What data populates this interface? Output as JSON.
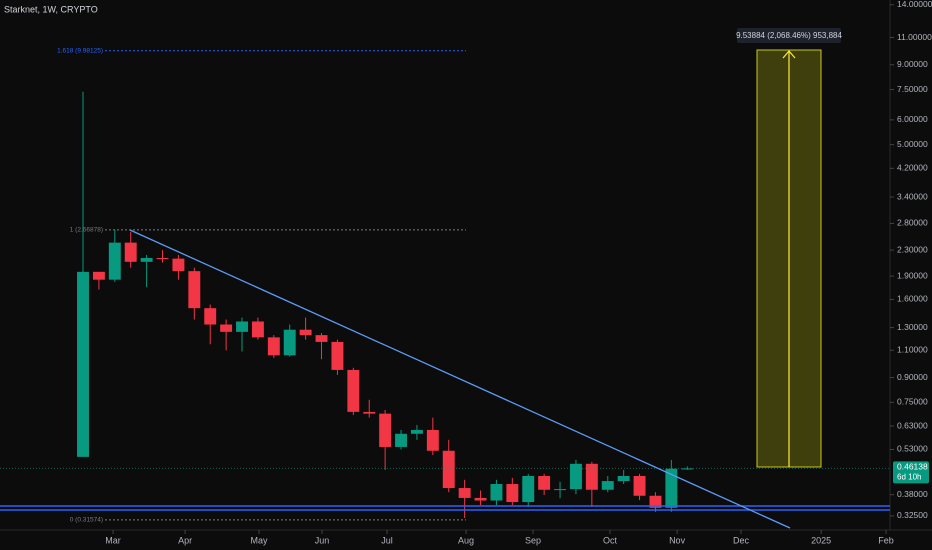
{
  "chart_data": {
    "type": "candlestick",
    "title": "Starknet, 1W, CRYPTO",
    "log_scale": true,
    "x": [
      0,
      1,
      2,
      3,
      4,
      5,
      6,
      7,
      8,
      9,
      10,
      11,
      12,
      13,
      14,
      15,
      16,
      17,
      18,
      19,
      20,
      21,
      22,
      23,
      24,
      25,
      26,
      27,
      28,
      29,
      30,
      31,
      32,
      33,
      34,
      35,
      36,
      37,
      38
    ],
    "open": [
      0.502,
      1.96,
      1.85,
      2.43,
      2.11,
      2.17,
      2.16,
      1.97,
      1.5,
      1.33,
      1.26,
      1.36,
      1.21,
      1.06,
      1.28,
      1.23,
      1.17,
      0.952,
      0.699,
      0.69,
      0.54,
      0.595,
      0.612,
      0.525,
      0.399,
      0.371,
      0.364,
      0.411,
      0.36,
      0.436,
      0.394,
      0.396,
      0.477,
      0.394,
      0.42,
      0.436,
      0.377,
      0.345,
      0.46
    ],
    "high": [
      7.38,
      1.96,
      2.68,
      2.63,
      2.22,
      2.3,
      2.22,
      2.02,
      1.54,
      1.38,
      1.4,
      1.4,
      1.23,
      1.33,
      1.4,
      1.25,
      1.19,
      0.967,
      0.764,
      0.709,
      0.612,
      0.635,
      0.67,
      0.569,
      0.424,
      0.392,
      0.424,
      0.43,
      0.443,
      0.443,
      0.418,
      0.491,
      0.484,
      0.436,
      0.456,
      0.443,
      0.387,
      0.491,
      0.468
    ],
    "low": [
      0.502,
      1.72,
      1.82,
      2.02,
      1.75,
      2.1,
      1.85,
      1.38,
      1.15,
      1.1,
      1.09,
      1.19,
      1.04,
      1.05,
      1.19,
      1.03,
      0.918,
      0.683,
      0.67,
      0.456,
      0.53,
      0.569,
      0.509,
      0.387,
      0.32,
      0.352,
      0.352,
      0.352,
      0.347,
      0.379,
      0.37,
      0.381,
      0.347,
      0.387,
      0.411,
      0.365,
      0.335,
      0.335,
      0.456
    ],
    "close": [
      1.96,
      1.85,
      2.43,
      2.11,
      2.17,
      2.16,
      1.97,
      1.5,
      1.33,
      1.26,
      1.36,
      1.21,
      1.06,
      1.28,
      1.23,
      1.17,
      0.952,
      0.699,
      0.69,
      0.54,
      0.595,
      0.612,
      0.525,
      0.399,
      0.371,
      0.364,
      0.411,
      0.36,
      0.436,
      0.394,
      0.396,
      0.477,
      0.394,
      0.42,
      0.436,
      0.377,
      0.345,
      0.46,
      0.461
    ],
    "up_color": "#089981",
    "down_color": "#f23645",
    "xlim": [
      -5.22,
      50.75
    ],
    "xticks": [
      {
        "value": 1.89,
        "label": "Mar"
      },
      {
        "value": 6.42,
        "label": "Apr"
      },
      {
        "value": 11.07,
        "label": "May"
      },
      {
        "value": 15.03,
        "label": "Jun"
      },
      {
        "value": 19.12,
        "label": "Jul"
      },
      {
        "value": 24.09,
        "label": "Aug"
      },
      {
        "value": 28.3,
        "label": "Sep"
      },
      {
        "value": 33.14,
        "label": "Oct"
      },
      {
        "value": 37.36,
        "label": "Nov"
      },
      {
        "value": 41.38,
        "label": "Dec"
      },
      {
        "value": 46.42,
        "label": "2025"
      },
      {
        "value": 50.5,
        "label": "Feb"
      }
    ],
    "ylim": [
      0.293,
      14.5
    ],
    "yticks": [
      {
        "value": 14,
        "label": "14.00000"
      },
      {
        "value": 11,
        "label": "11.00000"
      },
      {
        "value": 9,
        "label": "9.00000"
      },
      {
        "value": 7.5,
        "label": "7.50000"
      },
      {
        "value": 6,
        "label": "6.00000"
      },
      {
        "value": 5,
        "label": "5.00000"
      },
      {
        "value": 4.2,
        "label": "4.20000"
      },
      {
        "value": 3.4,
        "label": "3.40000"
      },
      {
        "value": 2.8,
        "label": "2.80000"
      },
      {
        "value": 2.3,
        "label": "2.30000"
      },
      {
        "value": 1.9,
        "label": "1.90000"
      },
      {
        "value": 1.6,
        "label": "1.60000"
      },
      {
        "value": 1.3,
        "label": "1.30000"
      },
      {
        "value": 1.1,
        "label": "1.10000"
      },
      {
        "value": 0.9,
        "label": "0.90000"
      },
      {
        "value": 0.75,
        "label": "0.75000"
      },
      {
        "value": 0.63,
        "label": "0.63000"
      },
      {
        "value": 0.53,
        "label": "0.53000"
      },
      {
        "value": 0.38,
        "label": "0.38000"
      },
      {
        "value": 0.325,
        "label": "0.32500"
      }
    ],
    "fib_levels": [
      {
        "value": 9.98125,
        "label": "1.618 (9.98125)",
        "color": "#2962ff"
      },
      {
        "value": 2.66878,
        "label": "1 (2.66878)",
        "color": "#787b86"
      },
      {
        "value": 0.31574,
        "label": "0 (0.31574)",
        "color": "#787b86"
      }
    ],
    "projection_label": "9.53884 (2,068.46%) 953,884",
    "last_price": 0.46138,
    "countdown": "6d 10h"
  }
}
